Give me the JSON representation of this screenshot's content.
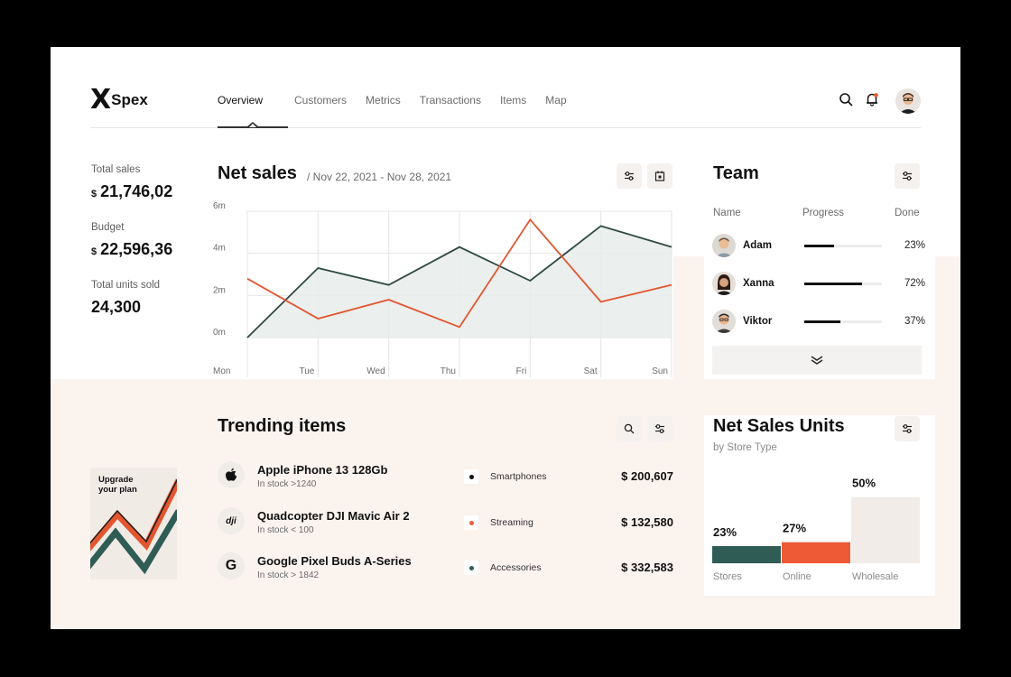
{
  "app": {
    "logo_mark": "X",
    "logo_text": "Spex"
  },
  "nav": {
    "tabs": [
      "Overview",
      "Customers",
      "Metrics",
      "Transactions",
      "Items",
      "Map"
    ],
    "active": "Overview"
  },
  "header": {
    "icons": [
      "search-icon",
      "bell-icon",
      "avatar"
    ],
    "notification_color": "#e8603c"
  },
  "kpis": [
    {
      "label": "Total sales",
      "currency": "$",
      "value": "21,746,02"
    },
    {
      "label": "Budget",
      "currency": "$",
      "value": "22,596,36"
    },
    {
      "label": "Total units sold",
      "currency": "",
      "value": "24,300"
    }
  ],
  "net_sales": {
    "title": "Net sales",
    "date_range": "/ Nov 22, 2021 - Nov 28, 2021"
  },
  "chart_data": [
    {
      "type": "line",
      "categories": [
        "Mon",
        "Tue",
        "Wed",
        "Thu",
        "Fri",
        "Sat",
        "Sun"
      ],
      "yticks": [
        "0m",
        "2m",
        "4m",
        "6m"
      ],
      "ylim": [
        0,
        6
      ],
      "series": [
        {
          "color": "#2e4a44",
          "values": [
            0,
            3.3,
            2.5,
            4.3,
            2.7,
            5.3,
            4.3
          ]
        },
        {
          "color": "#e2562f",
          "values": [
            2.8,
            0.9,
            1.8,
            0.5,
            5.6,
            1.7,
            2.5
          ]
        }
      ],
      "grid": true
    },
    {
      "type": "bar",
      "categories": [
        "Stores",
        "Online",
        "Wholesale"
      ],
      "values": [
        23,
        27,
        50
      ],
      "labels": [
        "23%",
        "27%",
        "50%"
      ],
      "colors": [
        "#2f5c55",
        "#ee5a36",
        "#f1ece8"
      ]
    }
  ],
  "team": {
    "title": "Team",
    "columns": [
      "Name",
      "Progress",
      "Done"
    ],
    "members": [
      {
        "name": "Adam",
        "progress": 0.38,
        "done": "23%"
      },
      {
        "name": "Xanna",
        "progress": 0.74,
        "done": "72%"
      },
      {
        "name": "Viktor",
        "progress": 0.47,
        "done": "37%"
      }
    ]
  },
  "trending": {
    "title": "Trending items",
    "promo": "Upgrade your plan",
    "items": [
      {
        "icon": "apple-icon",
        "title": "Apple iPhone 13 128Gb",
        "stock": "In stock >1240",
        "category": "Smartphones",
        "dot": "#111111",
        "price": "$ 200,607"
      },
      {
        "icon": "dji-icon",
        "title": "Quadcopter DJI Mavic Air 2",
        "stock": "In stock < 100",
        "category": "Streaming",
        "dot": "#e8603c",
        "price": "$ 132,580"
      },
      {
        "icon": "google-icon",
        "title": "Google Pixel Buds A-Series",
        "stock": "In stock > 1842",
        "category": "Accessories",
        "dot": "#2f5c55",
        "price": "$ 332,583"
      }
    ]
  },
  "units": {
    "title": "Net Sales Units",
    "subtitle": "by Store Type"
  }
}
